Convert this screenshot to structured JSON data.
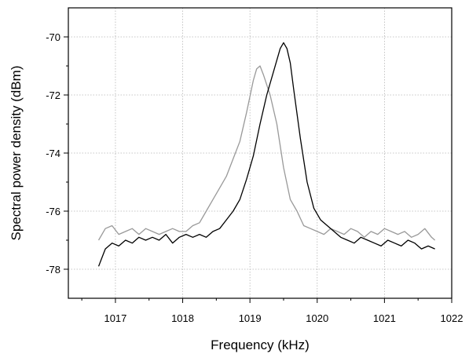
{
  "chart_data": {
    "type": "line",
    "title": "",
    "xlabel": "Frequency  (kHz)",
    "ylabel": "Spectral power density (dBm)",
    "xlim": [
      1016.3,
      1022.0
    ],
    "ylim": [
      -79.0,
      -69.0
    ],
    "xticks": [
      1017,
      1018,
      1019,
      1020,
      1021,
      1022
    ],
    "yticks": [
      -78,
      -76,
      -74,
      -72,
      -70
    ],
    "grid": true,
    "legend": "none",
    "series": [
      {
        "color": "#000000",
        "x": [
          1016.75,
          1016.85,
          1016.95,
          1017.05,
          1017.15,
          1017.25,
          1017.35,
          1017.45,
          1017.55,
          1017.65,
          1017.75,
          1017.85,
          1017.95,
          1018.05,
          1018.15,
          1018.25,
          1018.35,
          1018.45,
          1018.55,
          1018.65,
          1018.75,
          1018.85,
          1018.95,
          1019.05,
          1019.15,
          1019.25,
          1019.35,
          1019.45,
          1019.5,
          1019.55,
          1019.6,
          1019.65,
          1019.75,
          1019.85,
          1019.95,
          1020.05,
          1020.15,
          1020.25,
          1020.35,
          1020.45,
          1020.55,
          1020.65,
          1020.75,
          1020.85,
          1020.95,
          1021.05,
          1021.15,
          1021.25,
          1021.35,
          1021.45,
          1021.55,
          1021.65,
          1021.75
        ],
        "y": [
          -77.9,
          -77.3,
          -77.1,
          -77.2,
          -77.0,
          -77.1,
          -76.9,
          -77.0,
          -76.9,
          -77.0,
          -76.8,
          -77.1,
          -76.9,
          -76.8,
          -76.9,
          -76.8,
          -76.9,
          -76.7,
          -76.6,
          -76.3,
          -76.0,
          -75.6,
          -74.9,
          -74.1,
          -73.0,
          -72.0,
          -71.2,
          -70.4,
          -70.2,
          -70.4,
          -70.9,
          -71.8,
          -73.5,
          -75.0,
          -75.9,
          -76.3,
          -76.5,
          -76.7,
          -76.9,
          -77.0,
          -77.1,
          -76.9,
          -77.0,
          -77.1,
          -77.2,
          -77.0,
          -77.1,
          -77.2,
          -77.0,
          -77.1,
          -77.3,
          -77.2,
          -77.3
        ]
      },
      {
        "color": "#999999",
        "x": [
          1016.75,
          1016.85,
          1016.95,
          1017.05,
          1017.15,
          1017.25,
          1017.35,
          1017.45,
          1017.55,
          1017.65,
          1017.75,
          1017.85,
          1017.95,
          1018.05,
          1018.15,
          1018.25,
          1018.35,
          1018.45,
          1018.55,
          1018.65,
          1018.75,
          1018.85,
          1018.95,
          1019.05,
          1019.1,
          1019.15,
          1019.2,
          1019.3,
          1019.4,
          1019.5,
          1019.6,
          1019.7,
          1019.8,
          1019.9,
          1020.0,
          1020.1,
          1020.2,
          1020.3,
          1020.4,
          1020.5,
          1020.6,
          1020.7,
          1020.8,
          1020.9,
          1021.0,
          1021.1,
          1021.2,
          1021.3,
          1021.4,
          1021.5,
          1021.6,
          1021.7,
          1021.75
        ],
        "y": [
          -77.0,
          -76.6,
          -76.5,
          -76.8,
          -76.7,
          -76.6,
          -76.8,
          -76.6,
          -76.7,
          -76.8,
          -76.7,
          -76.6,
          -76.7,
          -76.7,
          -76.5,
          -76.4,
          -76.0,
          -75.6,
          -75.2,
          -74.8,
          -74.2,
          -73.6,
          -72.6,
          -71.5,
          -71.1,
          -71.0,
          -71.3,
          -72.0,
          -73.0,
          -74.5,
          -75.6,
          -76.0,
          -76.5,
          -76.6,
          -76.7,
          -76.8,
          -76.6,
          -76.7,
          -76.8,
          -76.6,
          -76.7,
          -76.9,
          -76.7,
          -76.8,
          -76.6,
          -76.7,
          -76.8,
          -76.7,
          -76.9,
          -76.8,
          -76.6,
          -76.9,
          -77.0
        ]
      }
    ]
  }
}
